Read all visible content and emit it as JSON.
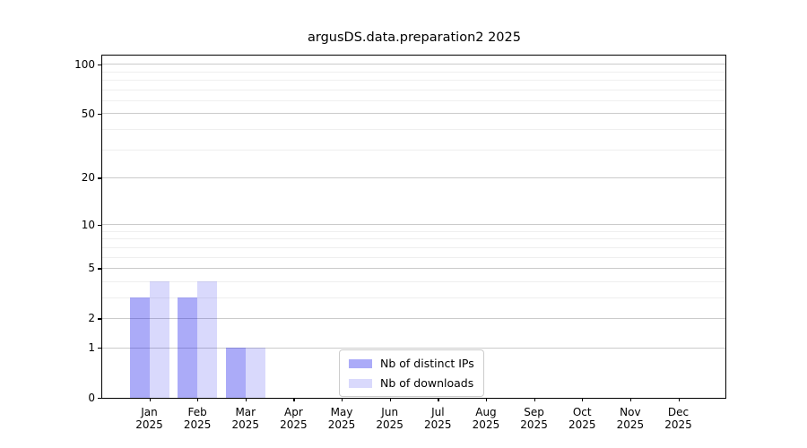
{
  "chart_data": {
    "type": "bar",
    "title": "argusDS.data.preparation2 2025",
    "categories": [
      "Jan",
      "Feb",
      "Mar",
      "Apr",
      "May",
      "Jun",
      "Jul",
      "Aug",
      "Sep",
      "Oct",
      "Nov",
      "Dec"
    ],
    "category_year": "2025",
    "series": [
      {
        "name": "Nb of distinct IPs",
        "color": "#0a0aeb",
        "alpha": 0.34,
        "values": [
          3,
          3,
          1,
          0,
          0,
          0,
          0,
          0,
          0,
          0,
          0,
          0
        ]
      },
      {
        "name": "Nb of downloads",
        "color": "#0a0aeb",
        "alpha": 0.155,
        "values": [
          4,
          4,
          1,
          0,
          0,
          0,
          0,
          0,
          0,
          0,
          0,
          0
        ]
      }
    ],
    "yscale": "log1p",
    "ylim": [
      0,
      113
    ],
    "yticks_major": [
      0,
      1,
      2,
      5,
      10,
      20,
      50,
      100
    ],
    "yticks_minor": [
      3,
      4,
      6,
      7,
      8,
      9,
      30,
      40,
      60,
      70,
      80,
      90
    ],
    "grid": "on",
    "legend_position": "lower-center",
    "colors": {
      "grid_major": "#cbcbcb",
      "grid_minor": "#efefef",
      "spine": "#000000",
      "text": "#000000",
      "legend_border": "#cccccc",
      "background": "#ffffff"
    }
  }
}
